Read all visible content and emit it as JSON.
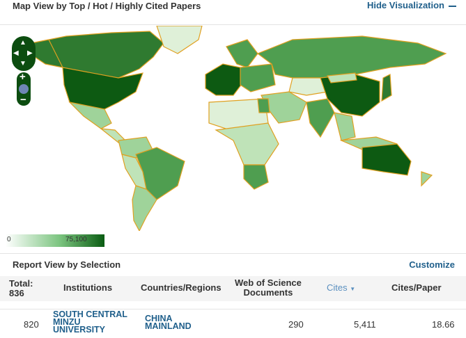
{
  "header": {
    "title": "Map View by Top / Hot / Highly Cited Papers",
    "hide_label": "Hide Visualization"
  },
  "map": {
    "legend_min": "0",
    "legend_max": "75,100",
    "colors": {
      "dark": "#0d5a12",
      "mid": "#4f9e50",
      "light": "#9fd39a",
      "pale": "#dff0d8",
      "border": "#e0a020"
    }
  },
  "report": {
    "title": "Report View by Selection",
    "customize_label": "Customize",
    "columns": {
      "total": "Total:",
      "total_count": "836",
      "institutions": "Institutions",
      "countries": "Countries/Regions",
      "wos_1": "Web of Science",
      "wos_2": "Documents",
      "cites": "Cites",
      "cites_per_paper": "Cites/Paper"
    },
    "rows": [
      {
        "rank": "820",
        "institution": [
          "SOUTH CENTRAL",
          "MINZU",
          "UNIVERSITY"
        ],
        "country": [
          "CHINA",
          "MAINLAND"
        ],
        "documents": "290",
        "cites": "5,411",
        "cites_per_paper": "18.66"
      }
    ]
  }
}
